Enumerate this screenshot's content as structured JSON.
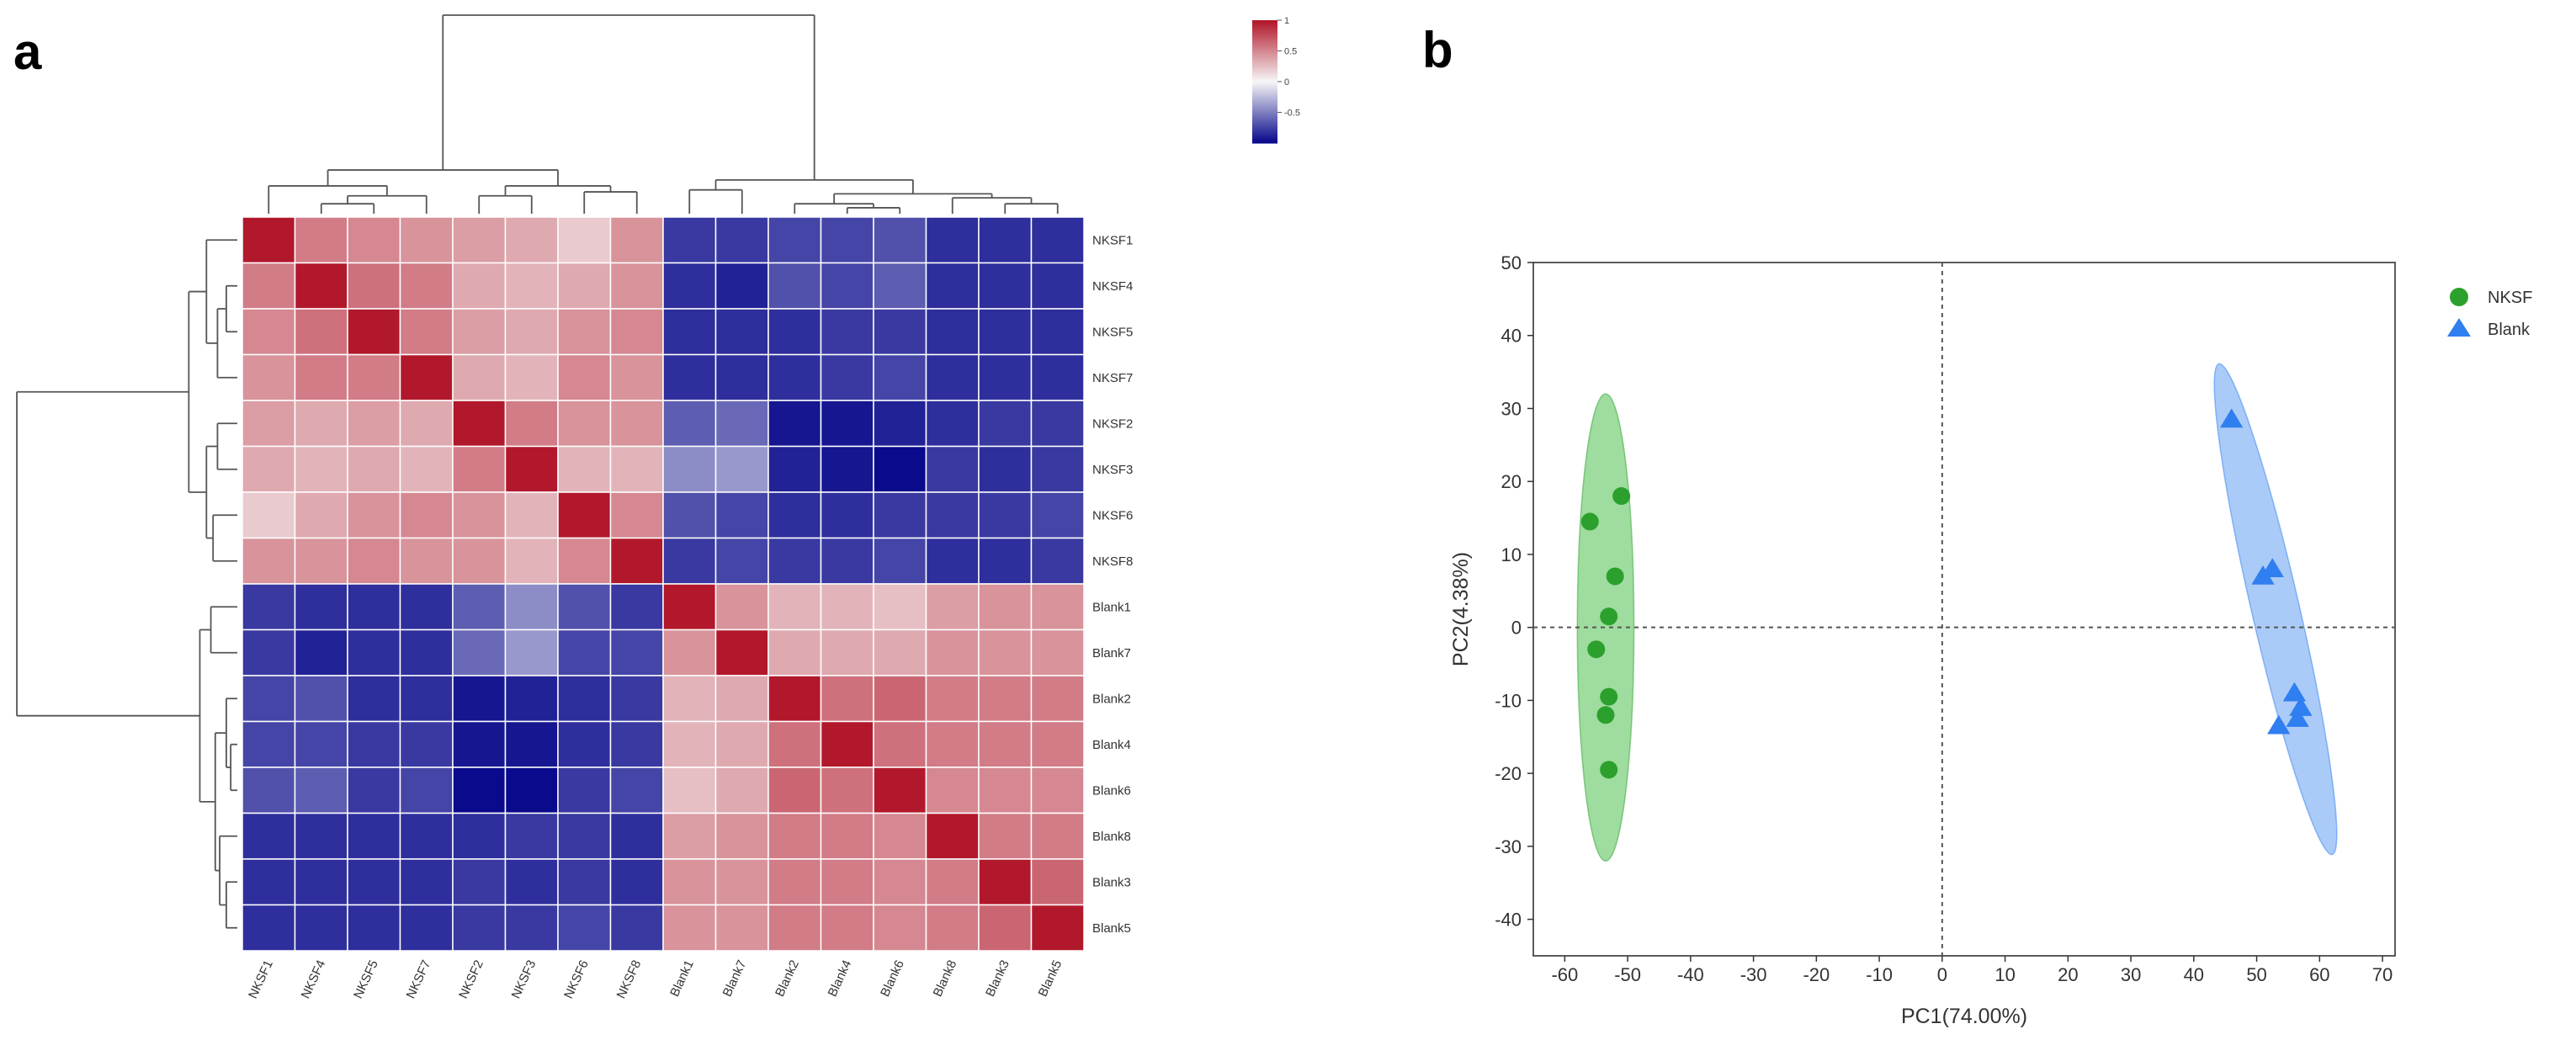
{
  "panels": {
    "a": "a",
    "b": "b"
  },
  "colors": {
    "heat_high": "#b2182b",
    "heat_mid": "#f7f7f7",
    "heat_low": "#0a0a8c",
    "nksf": "#2ca02c",
    "nksf_ellipse": "#7fd07f",
    "blank": "#2f7ff0",
    "blank_ellipse": "#8db8f5",
    "axis": "#333333",
    "cell_border": "#ffffff"
  },
  "chart_data": [
    {
      "type": "heatmap",
      "title": "",
      "rows": [
        "NKSF1",
        "NKSF4",
        "NKSF5",
        "NKSF7",
        "NKSF2",
        "NKSF3",
        "NKSF6",
        "NKSF8",
        "Blank1",
        "Blank7",
        "Blank2",
        "Blank4",
        "Blank6",
        "Blank8",
        "Blank3",
        "Blank5"
      ],
      "columns": [
        "NKSF1",
        "NKSF4",
        "NKSF5",
        "NKSF7",
        "NKSF2",
        "NKSF3",
        "NKSF6",
        "NKSF8",
        "Blank1",
        "Blank7",
        "Blank2",
        "Blank4",
        "Blank6",
        "Blank8",
        "Blank3",
        "Blank5"
      ],
      "values": [
        [
          1.0,
          0.55,
          0.5,
          0.45,
          0.4,
          0.35,
          0.2,
          0.45,
          -0.8,
          -0.8,
          -0.75,
          -0.75,
          -0.7,
          -0.85,
          -0.85,
          -0.85
        ],
        [
          0.55,
          1.0,
          0.6,
          0.55,
          0.35,
          0.3,
          0.35,
          0.45,
          -0.85,
          -0.9,
          -0.7,
          -0.75,
          -0.65,
          -0.85,
          -0.85,
          -0.85
        ],
        [
          0.5,
          0.6,
          1.0,
          0.55,
          0.4,
          0.35,
          0.45,
          0.5,
          -0.85,
          -0.85,
          -0.85,
          -0.8,
          -0.8,
          -0.85,
          -0.85,
          -0.85
        ],
        [
          0.45,
          0.55,
          0.55,
          1.0,
          0.35,
          0.3,
          0.5,
          0.45,
          -0.85,
          -0.85,
          -0.85,
          -0.8,
          -0.75,
          -0.85,
          -0.85,
          -0.85
        ],
        [
          0.4,
          0.35,
          0.4,
          0.35,
          1.0,
          0.55,
          0.45,
          0.45,
          -0.65,
          -0.6,
          -0.95,
          -0.95,
          -0.9,
          -0.85,
          -0.8,
          -0.8
        ],
        [
          0.35,
          0.3,
          0.35,
          0.3,
          0.55,
          1.0,
          0.3,
          0.3,
          -0.45,
          -0.4,
          -0.9,
          -0.95,
          -1.0,
          -0.8,
          -0.85,
          -0.8
        ],
        [
          0.2,
          0.35,
          0.45,
          0.5,
          0.45,
          0.3,
          1.0,
          0.5,
          -0.7,
          -0.75,
          -0.85,
          -0.85,
          -0.8,
          -0.8,
          -0.8,
          -0.75
        ],
        [
          0.45,
          0.45,
          0.5,
          0.45,
          0.45,
          0.3,
          0.5,
          1.0,
          -0.8,
          -0.75,
          -0.8,
          -0.8,
          -0.75,
          -0.85,
          -0.85,
          -0.8
        ],
        [
          -0.8,
          -0.85,
          -0.85,
          -0.85,
          -0.65,
          -0.45,
          -0.7,
          -0.8,
          1.0,
          0.45,
          0.3,
          0.3,
          0.25,
          0.4,
          0.45,
          0.45
        ],
        [
          -0.8,
          -0.9,
          -0.85,
          -0.85,
          -0.6,
          -0.4,
          -0.75,
          -0.75,
          0.45,
          1.0,
          0.35,
          0.35,
          0.35,
          0.45,
          0.45,
          0.45
        ],
        [
          -0.75,
          -0.7,
          -0.85,
          -0.85,
          -0.95,
          -0.9,
          -0.85,
          -0.8,
          0.3,
          0.35,
          1.0,
          0.6,
          0.65,
          0.55,
          0.55,
          0.55
        ],
        [
          -0.75,
          -0.75,
          -0.8,
          -0.8,
          -0.95,
          -0.95,
          -0.85,
          -0.8,
          0.3,
          0.35,
          0.6,
          1.0,
          0.6,
          0.55,
          0.55,
          0.55
        ],
        [
          -0.7,
          -0.65,
          -0.8,
          -0.75,
          -1.0,
          -1.0,
          -0.8,
          -0.75,
          0.25,
          0.35,
          0.65,
          0.6,
          1.0,
          0.5,
          0.5,
          0.5
        ],
        [
          -0.85,
          -0.85,
          -0.85,
          -0.85,
          -0.85,
          -0.8,
          -0.8,
          -0.85,
          0.4,
          0.45,
          0.55,
          0.55,
          0.5,
          1.0,
          0.55,
          0.55
        ],
        [
          -0.85,
          -0.85,
          -0.85,
          -0.85,
          -0.8,
          -0.85,
          -0.8,
          -0.85,
          0.45,
          0.45,
          0.55,
          0.55,
          0.5,
          0.55,
          1.0,
          0.65
        ],
        [
          -0.85,
          -0.85,
          -0.85,
          -0.85,
          -0.8,
          -0.8,
          -0.75,
          -0.8,
          0.45,
          0.45,
          0.55,
          0.55,
          0.5,
          0.55,
          0.65,
          1.0
        ]
      ],
      "color_scale": {
        "min": -1,
        "max": 1,
        "ticks": [
          1,
          0.5,
          0,
          -0.5
        ],
        "tick_labels": [
          "1",
          "0.5",
          "0",
          "-0.5"
        ]
      },
      "legend": "top-right",
      "dendrograms": "row and column hierarchical clustering"
    },
    {
      "type": "scatter",
      "title": "",
      "xlabel": "PC1(74.00%)",
      "ylabel": "PC2(4.38%)",
      "xlim": [
        -65,
        72
      ],
      "ylim": [
        -45,
        50
      ],
      "xticks": [
        -60,
        -50,
        -40,
        -30,
        -20,
        -10,
        0,
        10,
        20,
        30,
        40,
        50,
        60,
        70
      ],
      "yticks": [
        50,
        40,
        30,
        20,
        10,
        0,
        -10,
        -20,
        -30,
        -40
      ],
      "reference_lines": {
        "x": 0,
        "y": 0,
        "style": "dashed"
      },
      "legend": "top-right",
      "series": [
        {
          "name": "NKSF",
          "marker": "circle",
          "points": [
            [
              -51,
              18
            ],
            [
              -56,
              14.5
            ],
            [
              -52,
              7
            ],
            [
              -53,
              1.5
            ],
            [
              -55,
              -3
            ],
            [
              -53,
              -9.5
            ],
            [
              -53.5,
              -12
            ],
            [
              -53,
              -19.5
            ]
          ],
          "ellipse": {
            "cx": -53.5,
            "cy": 0,
            "rx": 4.5,
            "ry": 32,
            "rotation_deg": 0
          }
        },
        {
          "name": "Blank",
          "marker": "triangle",
          "points": [
            [
              46,
              28.5
            ],
            [
              51,
              7
            ],
            [
              52.5,
              8
            ],
            [
              56,
              -9
            ],
            [
              57,
              -11
            ],
            [
              56.5,
              -12.5
            ],
            [
              53.5,
              -13.5
            ]
          ],
          "ellipse": {
            "cx": 53,
            "cy": 2.5,
            "rx": 3.8,
            "ry": 34.5,
            "rotation_deg": -13
          }
        }
      ]
    }
  ]
}
